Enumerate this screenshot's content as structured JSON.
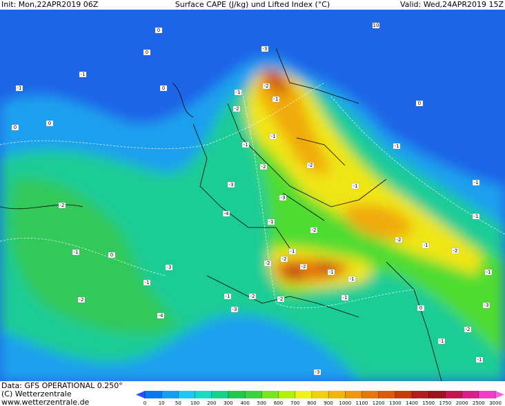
{
  "header": {
    "init": "Init: Mon,22APR2019 06Z",
    "title": "Surface CAPE (J/kg) und Lifted Index (°C)",
    "valid": "Valid: Wed,24APR2019 15Z"
  },
  "footer": {
    "data": "Data: GFS OPERATIONAL 0.250°",
    "copyright": "(C) Wetterzentrale",
    "url": "www.wetterzentrale.de"
  },
  "colorbar": {
    "labels": [
      0,
      10,
      50,
      100,
      200,
      300,
      400,
      500,
      600,
      700,
      800,
      900,
      1000,
      1100,
      1200,
      1300,
      1400,
      1500,
      1750,
      2000,
      2500,
      3000
    ],
    "colors": [
      "#2850ff",
      "#0a78f0",
      "#14a0f0",
      "#1ec8f0",
      "#14dcc8",
      "#14d28c",
      "#1ec850",
      "#3cd23c",
      "#78e61e",
      "#b4f00a",
      "#f0f014",
      "#f0d20a",
      "#f0b40a",
      "#f0960a",
      "#e6780a",
      "#dc5a0a",
      "#c83c0a",
      "#b41e1e",
      "#a0141e",
      "#c81450",
      "#dc1e8c",
      "#f03cc8",
      "#f064dc"
    ]
  },
  "lifted_index_labels": [
    0,
    10,
    0,
    0,
    0,
    -1,
    0,
    0,
    -1,
    -1,
    -2,
    -3,
    -2,
    -1,
    -2,
    -1,
    -1,
    -2,
    -2,
    -1,
    -3,
    -3,
    -2,
    -1,
    -2,
    -1,
    -2,
    -1,
    -1,
    -3,
    -2,
    -4,
    -3,
    -4,
    -2,
    -2,
    -1,
    -1,
    -1,
    0,
    -1,
    -1,
    -2,
    -1,
    -1,
    -3,
    -1,
    -2,
    -1,
    -1,
    -2,
    0,
    -1,
    -3,
    -2
  ]
}
